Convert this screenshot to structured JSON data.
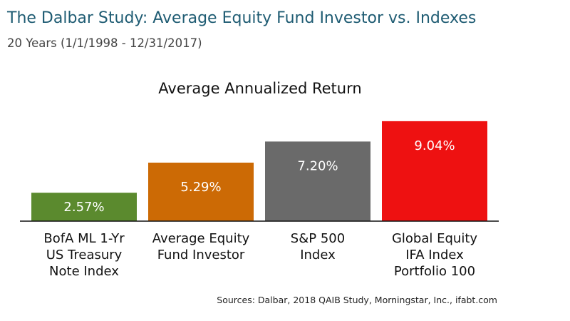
{
  "header": {
    "title": "The Dalbar Study: Average Equity Fund Investor vs. Indexes",
    "subtitle": "20 Years (1/1/1998 - 12/31/2017)"
  },
  "chart_data": {
    "type": "bar",
    "title": "Average Annualized Return",
    "xlabel": "",
    "ylabel": "",
    "ylim": [
      0,
      10
    ],
    "grid": false,
    "legend": "none",
    "categories": [
      [
        "BofA ML 1-Yr",
        "US Treasury",
        "Note Index"
      ],
      [
        "Average Equity",
        "Fund Investor"
      ],
      [
        "S&P 500",
        "Index"
      ],
      [
        "Global Equity",
        "IFA Index",
        "Portfolio 100"
      ]
    ],
    "values": [
      2.57,
      5.29,
      7.2,
      9.04
    ],
    "value_labels": [
      "2.57%",
      "5.29%",
      "7.20%",
      "9.04%"
    ],
    "colors": [
      "#5b8a2e",
      "#cc6a05",
      "#6a6a6a",
      "#ee1111"
    ]
  },
  "footer": {
    "source": "Sources: Dalbar, 2018 QAIB Study, Morningstar, Inc., ifabt.com"
  }
}
